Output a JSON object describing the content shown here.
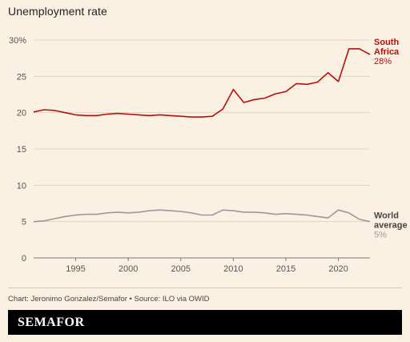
{
  "title": "Unemployment rate",
  "source": "Chart: Jeronimo Gonzalez/Semafor • Source: ILO via OWID",
  "brand": "SEMAFOR",
  "chart_data": {
    "type": "line",
    "title": "Unemployment rate",
    "xlim": [
      1991,
      2023
    ],
    "ylim": [
      0,
      30
    ],
    "yticks": [
      0,
      5,
      10,
      15,
      20,
      25,
      30
    ],
    "ytick_labels": [
      "0",
      "5",
      "10",
      "15",
      "20",
      "25",
      "30%"
    ],
    "xticks": [
      1995,
      2000,
      2005,
      2010,
      2015,
      2020
    ],
    "grid": "horizontal",
    "x": [
      1991,
      1992,
      1993,
      1994,
      1995,
      1996,
      1997,
      1998,
      1999,
      2000,
      2001,
      2002,
      2003,
      2004,
      2005,
      2006,
      2007,
      2008,
      2009,
      2010,
      2011,
      2012,
      2013,
      2014,
      2015,
      2016,
      2017,
      2018,
      2019,
      2020,
      2021,
      2022,
      2023
    ],
    "series": [
      {
        "name": "South Africa",
        "end_label": [
          "South",
          "Africa"
        ],
        "end_value": "28%",
        "color": "#b80f0a",
        "values": [
          20.1,
          20.4,
          20.3,
          20.0,
          19.7,
          19.6,
          19.6,
          19.8,
          19.9,
          19.8,
          19.7,
          19.6,
          19.7,
          19.6,
          19.5,
          19.4,
          19.4,
          19.5,
          20.5,
          23.2,
          21.4,
          21.8,
          22.0,
          22.6,
          22.9,
          24.0,
          23.9,
          24.2,
          25.5,
          24.3,
          28.8,
          28.8,
          28.0
        ]
      },
      {
        "name": "World average",
        "end_label": [
          "World",
          "average"
        ],
        "end_value": "5%",
        "color": "#9a9a9a",
        "values": [
          5.0,
          5.1,
          5.4,
          5.7,
          5.9,
          6.0,
          6.0,
          6.2,
          6.3,
          6.2,
          6.3,
          6.5,
          6.6,
          6.5,
          6.4,
          6.2,
          5.9,
          5.9,
          6.6,
          6.5,
          6.3,
          6.3,
          6.2,
          6.0,
          6.1,
          6.0,
          5.9,
          5.7,
          5.5,
          6.6,
          6.2,
          5.3,
          5.0
        ]
      }
    ]
  }
}
